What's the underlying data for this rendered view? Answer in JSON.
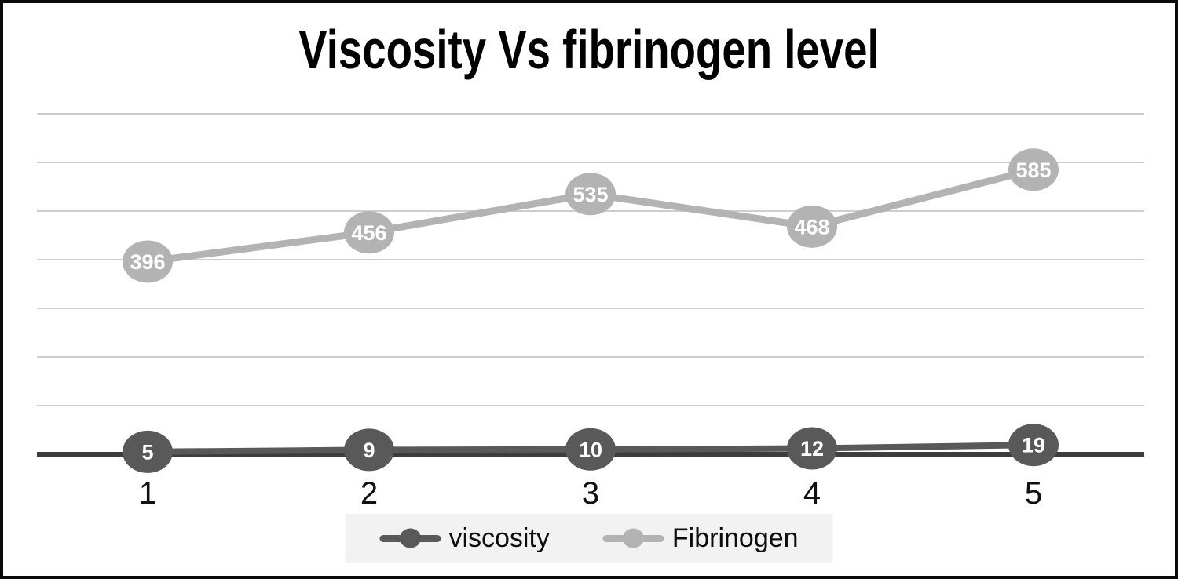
{
  "chart_data": {
    "type": "line",
    "title": "Viscosity Vs fibrinogen level",
    "categories": [
      "1",
      "2",
      "3",
      "4",
      "5"
    ],
    "series": [
      {
        "name": "viscosity",
        "color": "#595959",
        "values": [
          5,
          9,
          10,
          12,
          19
        ]
      },
      {
        "name": "Fibrinogen",
        "color": "#b3b3b3",
        "values": [
          396,
          456,
          535,
          468,
          585
        ]
      }
    ],
    "xlabel": "",
    "ylabel": "",
    "ylim": [
      0,
      700
    ],
    "gridline_interval": 100,
    "grid": "horizontal-only",
    "legend_position": "bottom",
    "data_labels_shown": true
  },
  "style": {
    "gridline_color": "#cdcdcd",
    "axis_color": "#3d3d3d",
    "data_label_color": "#ffffff",
    "tick_label_color": "#111111",
    "legend_background": "#f2f2f2",
    "background": "#ffffff",
    "frame_border_color": "#0a0a0a"
  }
}
